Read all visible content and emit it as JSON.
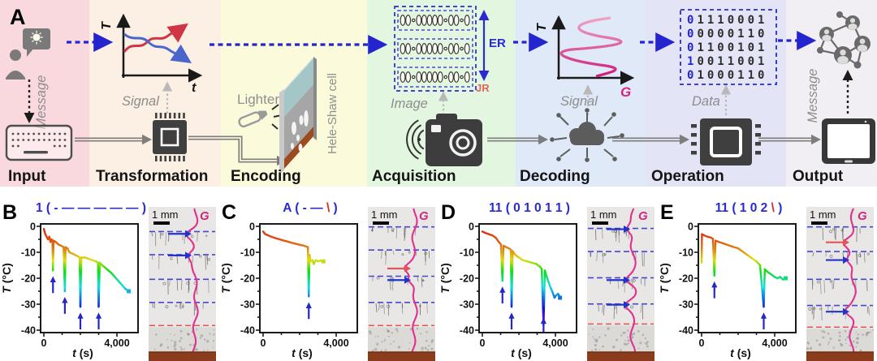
{
  "figure_label": "A",
  "panel_a": {
    "sections": [
      {
        "name": "Input",
        "bg": "#f9d9dd"
      },
      {
        "name": "Transformation",
        "bg": "#fcefe4"
      },
      {
        "name": "Encoding",
        "bg": "#fbfadb"
      },
      {
        "name": "Acquisition",
        "bg": "#e3f6df"
      },
      {
        "name": "Decoding",
        "bg": "#dfe9f8"
      },
      {
        "name": "Operation",
        "bg": "#e4e4f7"
      },
      {
        "name": "Output",
        "bg": "#f1eff3"
      }
    ],
    "labels": {
      "message_in": "Message",
      "signal_transform": "Signal",
      "axis_T": "T",
      "axis_t": "t",
      "lighter": "Lighter",
      "hele_shaw": "Hele-Shaw cell",
      "image": "Image",
      "er": "ER",
      "jr": "JR",
      "signal_decode": "Signal",
      "axis_T2": "T",
      "axis_G": "G",
      "data": "Data",
      "message_out": "Message"
    },
    "binary_rows": [
      "01110001",
      "00000110",
      "01100101",
      "10011001",
      "01000110"
    ],
    "colors": {
      "blue": "#2525cf",
      "red": "#cf3545",
      "magenta": "#d4267e",
      "binary_rest": "#2e2e2e"
    }
  },
  "axes": {
    "ylabel_italic": "T",
    "ylabel_rest": " (°C)",
    "xlabel_italic": "t",
    "xlabel_rest": " (s)",
    "yticks": [
      0,
      -10,
      -20,
      -30,
      -40
    ],
    "ytick_labels": [
      "0",
      "-10",
      "-20",
      "-30",
      "-40"
    ],
    "xticks": [
      0,
      4000
    ],
    "xtick_labels": [
      "0",
      "4,000"
    ],
    "xminor": [
      1000,
      2000,
      3000
    ],
    "yminor": [
      -5,
      -15,
      -25,
      -35
    ]
  },
  "panels": [
    {
      "label": "B",
      "title_runs": [
        {
          "text": "1 ( - — — — — — )",
          "color": "#2a2ad2"
        }
      ],
      "image": {
        "scale_label": "1 mm",
        "g_label": "G",
        "seed": 7,
        "blue_lines": [
          0.16,
          0.31,
          0.47,
          0.62
        ],
        "red_line": 0.77,
        "arrows": [
          {
            "y": 0.175,
            "color": "#2233cc"
          },
          {
            "y": 0.315,
            "color": "#2233cc"
          }
        ]
      }
    },
    {
      "label": "C",
      "title_runs": [
        {
          "text": "A ( - — ",
          "color": "#2a2ad2"
        },
        {
          "text": "\\",
          "color": "#d03030"
        },
        {
          "text": " )",
          "color": "#2a2ad2"
        }
      ],
      "image": {
        "scale_label": "1 mm",
        "g_label": "G",
        "seed": 13,
        "blue_lines": [
          0.13,
          0.28,
          0.45,
          0.62
        ],
        "red_line": 0.77,
        "arrows": [
          {
            "y": 0.4,
            "color": "#e05555"
          },
          {
            "y": 0.475,
            "color": "#2233cc"
          }
        ]
      }
    },
    {
      "label": "D",
      "title_runs": [
        {
          "text": "11 ( 0 1 0 1 1 )",
          "color": "#2a2ad2"
        }
      ],
      "image": {
        "scale_label": "1 mm",
        "g_label": "G",
        "seed": 21,
        "blue_lines": [
          0.14,
          0.29,
          0.46,
          0.63
        ],
        "red_line": 0.76,
        "arrows": [
          {
            "y": 0.145,
            "color": "#2233cc"
          },
          {
            "y": 0.475,
            "color": "#2233cc"
          },
          {
            "y": 0.635,
            "color": "#2233cc"
          }
        ]
      }
    },
    {
      "label": "E",
      "title_runs": [
        {
          "text": "11 ( 1 0 2 ",
          "color": "#2a2ad2"
        },
        {
          "text": "\\",
          "color": "#d03030"
        },
        {
          "text": " )",
          "color": "#2a2ad2"
        }
      ],
      "image": {
        "scale_label": "1 mm",
        "g_label": "G",
        "seed": 33,
        "blue_lines": [
          0.13,
          0.29,
          0.47,
          0.64
        ],
        "red_line": 0.78,
        "arrows": [
          {
            "y": 0.23,
            "color": "#e05555"
          },
          {
            "y": 0.345,
            "color": "#2233cc"
          },
          {
            "y": 0.68,
            "color": "#2233cc"
          }
        ]
      }
    }
  ],
  "chart_data": [
    {
      "panel": "B",
      "type": "line",
      "title": "1 (-—————)",
      "xlabel": "t (s)",
      "ylabel": "T (°C)",
      "xlim": [
        0,
        5100
      ],
      "ylim": [
        -41,
        1
      ],
      "xticks": [
        0,
        4000
      ],
      "yticks": [
        0,
        -10,
        -20,
        -30,
        -40
      ],
      "grid": false,
      "legend": "none",
      "series": [
        {
          "name": "temperature",
          "points": [
            [
              0,
              -1
            ],
            [
              80,
              -3
            ],
            [
              150,
              -4
            ],
            [
              230,
              -5
            ],
            [
              300,
              -4
            ],
            [
              360,
              -6
            ],
            [
              420,
              -5
            ],
            [
              470,
              -5.5
            ],
            [
              500,
              -17
            ],
            [
              530,
              -5.5
            ],
            [
              650,
              -6
            ],
            [
              800,
              -7
            ],
            [
              950,
              -7.5
            ],
            [
              1080,
              -8
            ],
            [
              1150,
              -25
            ],
            [
              1190,
              -8
            ],
            [
              1300,
              -8.5
            ],
            [
              1400,
              -10
            ],
            [
              1550,
              -10.5
            ],
            [
              1700,
              -11
            ],
            [
              1850,
              -11.5
            ],
            [
              1960,
              -12
            ],
            [
              2000,
              -31
            ],
            [
              2050,
              -12
            ],
            [
              2250,
              -12
            ],
            [
              2450,
              -12.5
            ],
            [
              2650,
              -13
            ],
            [
              2850,
              -13.5
            ],
            [
              2960,
              -14
            ],
            [
              3000,
              -31
            ],
            [
              3060,
              -14
            ],
            [
              3200,
              -15
            ],
            [
              3450,
              -16.5
            ],
            [
              3700,
              -18
            ],
            [
              3950,
              -20
            ],
            [
              4200,
              -22
            ],
            [
              4450,
              -24
            ],
            [
              4650,
              -25
            ]
          ]
        }
      ],
      "freeze_arrows": [
        {
          "t": 500,
          "T": -17
        },
        {
          "t": 1150,
          "T": -25
        },
        {
          "t": 2000,
          "T": -31
        },
        {
          "t": 3000,
          "T": -31
        }
      ]
    },
    {
      "panel": "C",
      "type": "line",
      "title": "A (-—\\)",
      "xlabel": "t (s)",
      "ylabel": "T (°C)",
      "xlim": [
        0,
        5100
      ],
      "ylim": [
        -41,
        1
      ],
      "xticks": [
        0,
        4000
      ],
      "yticks": [
        0,
        -10,
        -20,
        -30,
        -40
      ],
      "grid": false,
      "legend": "none",
      "series": [
        {
          "name": "temperature",
          "points": [
            [
              0,
              -2
            ],
            [
              120,
              -3
            ],
            [
              280,
              -3.5
            ],
            [
              450,
              -4
            ],
            [
              650,
              -4.5
            ],
            [
              900,
              -5
            ],
            [
              1150,
              -5.5
            ],
            [
              1400,
              -6
            ],
            [
              1650,
              -6.5
            ],
            [
              1950,
              -7
            ],
            [
              2250,
              -7.5
            ],
            [
              2450,
              -8
            ],
            [
              2500,
              -27
            ],
            [
              2540,
              -11
            ],
            [
              2600,
              -13.5
            ],
            [
              2700,
              -13
            ],
            [
              2780,
              -14.5
            ],
            [
              2880,
              -13
            ],
            [
              3000,
              -13.5
            ],
            [
              3150,
              -13.2
            ],
            [
              3300,
              -13.5
            ]
          ]
        }
      ],
      "freeze_arrows": [
        {
          "t": 2500,
          "T": -27
        }
      ]
    },
    {
      "panel": "D",
      "type": "line",
      "title": "11 (01011)",
      "xlabel": "t (s)",
      "ylabel": "T (°C)",
      "xlim": [
        0,
        5100
      ],
      "ylim": [
        -41,
        1
      ],
      "xticks": [
        0,
        4000
      ],
      "yticks": [
        0,
        -10,
        -20,
        -30,
        -40
      ],
      "grid": false,
      "legend": "none",
      "series": [
        {
          "name": "temperature",
          "points": [
            [
              0,
              -2
            ],
            [
              150,
              -2.5
            ],
            [
              350,
              -3
            ],
            [
              550,
              -3.5
            ],
            [
              750,
              -4.5
            ],
            [
              900,
              -6
            ],
            [
              1020,
              -7
            ],
            [
              1100,
              -21
            ],
            [
              1160,
              -7.5
            ],
            [
              1300,
              -8
            ],
            [
              1450,
              -8.5
            ],
            [
              1560,
              -9
            ],
            [
              1600,
              -31
            ],
            [
              1660,
              -9.5
            ],
            [
              1800,
              -11
            ],
            [
              2000,
              -12
            ],
            [
              2200,
              -13
            ],
            [
              2450,
              -13.5
            ],
            [
              2700,
              -14
            ],
            [
              2950,
              -14.5
            ],
            [
              3150,
              -15.5
            ],
            [
              3250,
              -16.5
            ],
            [
              3350,
              -38
            ],
            [
              3420,
              -17
            ],
            [
              3550,
              -20
            ],
            [
              3700,
              -23
            ],
            [
              3850,
              -25.5
            ],
            [
              3950,
              -27.5
            ],
            [
              4050,
              -26.5
            ],
            [
              4150,
              -26
            ],
            [
              4250,
              -27.5
            ]
          ]
        }
      ],
      "freeze_arrows": [
        {
          "t": 1100,
          "T": -21
        },
        {
          "t": 1600,
          "T": -31
        },
        {
          "t": 3350,
          "T": -38
        }
      ]
    },
    {
      "panel": "E",
      "type": "line",
      "title": "11 (102\\)",
      "xlabel": "t (s)",
      "ylabel": "T (°C)",
      "xlim": [
        0,
        5100
      ],
      "ylim": [
        -41,
        1
      ],
      "xticks": [
        0,
        4000
      ],
      "yticks": [
        0,
        -10,
        -20,
        -30,
        -40
      ],
      "grid": false,
      "legend": "none",
      "series": [
        {
          "name": "temperature",
          "points": [
            [
              0,
              -14
            ],
            [
              20,
              -3
            ],
            [
              150,
              -3.5
            ],
            [
              320,
              -4
            ],
            [
              500,
              -4.3
            ],
            [
              620,
              -4.8
            ],
            [
              700,
              -19
            ],
            [
              760,
              -5.5
            ],
            [
              950,
              -6
            ],
            [
              1150,
              -6.5
            ],
            [
              1350,
              -7
            ],
            [
              1550,
              -7.5
            ],
            [
              1780,
              -8
            ],
            [
              2000,
              -8.5
            ],
            [
              2200,
              -9.5
            ],
            [
              2400,
              -10.5
            ],
            [
              2600,
              -11.5
            ],
            [
              2800,
              -12.5
            ],
            [
              3000,
              -13.5
            ],
            [
              3200,
              -15
            ],
            [
              3400,
              -31
            ],
            [
              3460,
              -16.5
            ],
            [
              3600,
              -17.5
            ],
            [
              3800,
              -18.5
            ],
            [
              4000,
              -19.5
            ],
            [
              4150,
              -20
            ],
            [
              4300,
              -19.5
            ],
            [
              4450,
              -20.5
            ],
            [
              4600,
              -20
            ]
          ]
        }
      ],
      "freeze_arrows": [
        {
          "t": 700,
          "T": -19
        },
        {
          "t": 3400,
          "T": -31
        }
      ]
    }
  ]
}
